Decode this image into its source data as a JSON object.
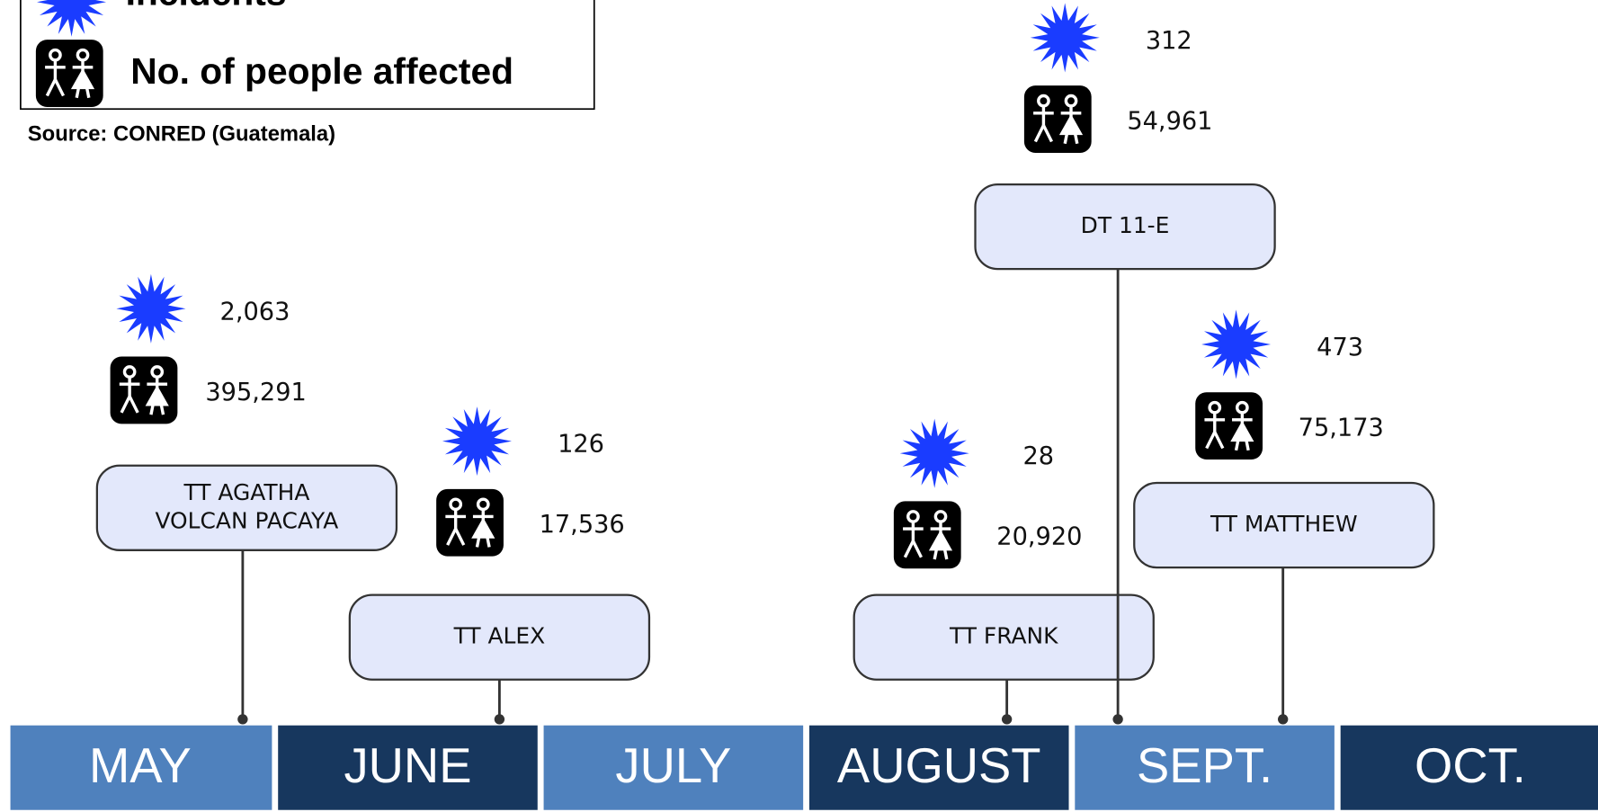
{
  "legend": {
    "items": [
      "Incidents",
      "No. of people affected"
    ]
  },
  "source": "Source: CONRED (Guatemala)",
  "events": [
    {
      "label": [
        "TT AGATHA",
        "VOLCAN PACAYA"
      ],
      "incidents": "2,063",
      "affected": "395,291"
    },
    {
      "label": [
        "TT ALEX"
      ],
      "incidents": "126",
      "affected": "17,536"
    },
    {
      "label": [
        "TT FRANK"
      ],
      "incidents": "28",
      "affected": "20,920"
    },
    {
      "label": [
        "DT 11-E"
      ],
      "incidents": "312",
      "affected": "54,961"
    },
    {
      "label": [
        "TT MATTHEW"
      ],
      "incidents": "473",
      "affected": "75,173"
    }
  ],
  "months": [
    "MAY",
    "JUNE",
    "JULY",
    "AUGUST",
    "SEPT.",
    "OCT."
  ]
}
